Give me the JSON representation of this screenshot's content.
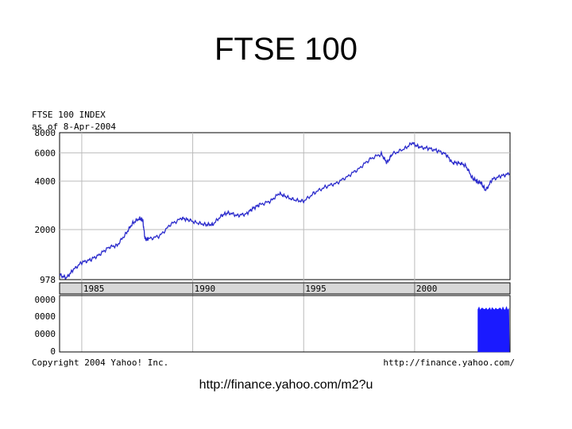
{
  "slide": {
    "title": "FTSE 100",
    "caption": "http://finance.yahoo.com/m2?u"
  },
  "chart_data": {
    "type": "line",
    "title": "FTSE 100 INDEX",
    "subtitle": "as of 8-Apr-2004",
    "copyright": "Copyright 2004 Yahoo! Inc.",
    "source": "http://finance.yahoo.com/",
    "xlim": [
      1984.0,
      2004.3
    ],
    "x_ticks": [
      1985,
      1990,
      1995,
      2000
    ],
    "x_tick_labels": [
      "1985",
      "1990",
      "1995",
      "2000"
    ],
    "y_ticks": [
      978,
      2000,
      4000,
      6000,
      8000
    ],
    "y_tick_labels": [
      "978",
      "2000",
      "4000",
      "6000",
      "8000"
    ],
    "y_scale": "log",
    "ylim": [
      978,
      8000
    ],
    "grid": true,
    "colors": {
      "line": "#2b2bcc",
      "volume": "#1a1aff",
      "grid": "#bbbbbb",
      "band": "#d8d8d8"
    },
    "series": [
      {
        "x": [
          1984.0,
          1984.3,
          1984.6,
          1985.0,
          1985.4,
          1985.8,
          1986.2,
          1986.6,
          1987.0,
          1987.3,
          1987.6,
          1987.75,
          1987.85,
          1988.0,
          1988.5,
          1989.0,
          1989.5,
          1989.8,
          1990.2,
          1990.6,
          1990.9,
          1991.3,
          1991.6,
          1992.0,
          1992.4,
          1992.7,
          1993.0,
          1993.5,
          1993.9,
          1994.2,
          1994.6,
          1995.0,
          1995.5,
          1996.0,
          1996.5,
          1997.0,
          1997.5,
          1998.0,
          1998.5,
          1998.75,
          1999.0,
          1999.5,
          1999.9,
          2000.2,
          2000.6,
          2001.0,
          2001.4,
          2001.7,
          2002.0,
          2002.3,
          2002.6,
          2002.8,
          2003.0,
          2003.2,
          2003.5,
          2003.9,
          2004.27
        ],
        "y": [
          1050,
          1000,
          1120,
          1250,
          1300,
          1400,
          1550,
          1600,
          1900,
          2200,
          2350,
          2300,
          1750,
          1750,
          1820,
          2150,
          2350,
          2300,
          2200,
          2150,
          2150,
          2450,
          2550,
          2450,
          2500,
          2700,
          2850,
          3000,
          3350,
          3200,
          3050,
          3000,
          3400,
          3700,
          3900,
          4300,
          4800,
          5500,
          5900,
          5200,
          5900,
          6300,
          6900,
          6500,
          6400,
          6200,
          5900,
          5200,
          5200,
          5000,
          4200,
          4000,
          3900,
          3500,
          4100,
          4300,
          4450
        ]
      }
    ],
    "volume": {
      "y_tick_labels": [
        "0000",
        "0000",
        "0000",
        "0"
      ],
      "x_range": [
        2002.85,
        2004.27
      ],
      "level_fraction": 0.82
    }
  }
}
